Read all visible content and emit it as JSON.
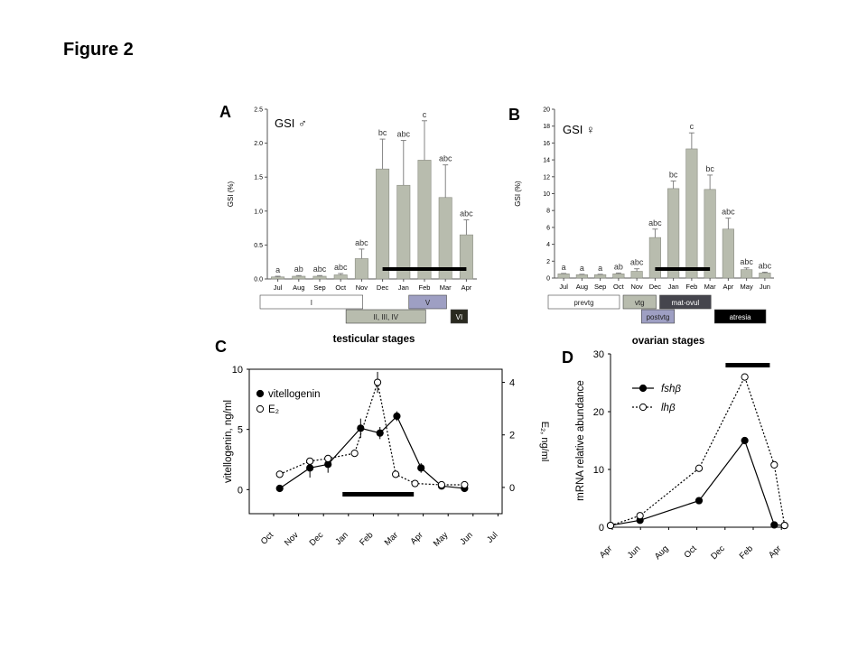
{
  "figure_title": "Figure 2",
  "colors": {
    "bar": "#b8bcae",
    "stage_light": "#ffffff",
    "stage_mid": "#b8bcae",
    "stage_blue": "#9e9fc3",
    "stage_dark": "#2a2a20",
    "stage_darkgray": "#45454d",
    "stage_black": "#000000"
  },
  "chart_data": [
    {
      "panel": "A",
      "type": "bar",
      "label": "GSI ♂",
      "ylabel": "GSI (%)",
      "ylim": [
        0,
        2.5
      ],
      "yticks": [
        "0.0",
        "0.5",
        "1.0",
        "1.5",
        "2.0",
        "2.5"
      ],
      "categories": [
        "Jul",
        "Aug",
        "Sep",
        "Oct",
        "Nov",
        "Dec",
        "Jan",
        "Feb",
        "Mar",
        "Apr"
      ],
      "values": [
        0.03,
        0.04,
        0.04,
        0.06,
        0.3,
        1.62,
        1.38,
        1.75,
        1.2,
        0.65
      ],
      "errors": [
        0.01,
        0.01,
        0.01,
        0.02,
        0.14,
        0.44,
        0.66,
        0.58,
        0.48,
        0.22
      ],
      "letters": [
        "a",
        "ab",
        "abc",
        "abc",
        "abc",
        "bc",
        "abc",
        "c",
        "abc",
        "abc"
      ],
      "bar_span": [
        "Dec",
        "Apr"
      ],
      "stages": [
        {
          "label": "I",
          "from": "Jul",
          "to": "Nov",
          "row": 0,
          "fill": "stage_light"
        },
        {
          "label": "V",
          "from": "Feb",
          "to": "Mar",
          "row": 0,
          "fill": "stage_blue"
        },
        {
          "label": "II, III, IV",
          "from": "Nov",
          "to": "Feb",
          "row": 1,
          "fill": "stage_mid"
        },
        {
          "label": "VI",
          "from": "Apr",
          "to": "Apr",
          "row": 1,
          "fill": "stage_dark"
        }
      ],
      "stage_title": "testicular stages"
    },
    {
      "panel": "B",
      "type": "bar",
      "label": "GSI ♀",
      "ylabel": "GSI (%)",
      "ylim": [
        0,
        20
      ],
      "yticks": [
        "0",
        "2",
        "4",
        "6",
        "8",
        "10",
        "12",
        "14",
        "16",
        "18",
        "20"
      ],
      "categories": [
        "Jul",
        "Aug",
        "Sep",
        "Oct",
        "Nov",
        "Dec",
        "Jan",
        "Feb",
        "Mar",
        "Apr",
        "May",
        "Jun"
      ],
      "values": [
        0.5,
        0.4,
        0.4,
        0.5,
        0.8,
        4.8,
        10.6,
        15.3,
        10.5,
        5.8,
        1.0,
        0.6
      ],
      "errors": [
        0.05,
        0.05,
        0.05,
        0.1,
        0.3,
        1.0,
        0.9,
        1.9,
        1.7,
        1.3,
        0.2,
        0.1
      ],
      "letters": [
        "a",
        "a",
        "a",
        "ab",
        "abc",
        "abc",
        "bc",
        "c",
        "bc",
        "abc",
        "abc",
        "abc"
      ],
      "bar_span": [
        "Dec",
        "Mar"
      ],
      "stages": [
        {
          "label": "prevtg",
          "from": "Jul",
          "to": "Oct",
          "row": 0,
          "fill": "stage_light"
        },
        {
          "label": "vtg",
          "from": "Nov",
          "to": "Dec",
          "row": 0,
          "fill": "stage_mid"
        },
        {
          "label": "mat-ovul",
          "from": "Jan",
          "to": "Mar",
          "row": 0,
          "fill": "stage_darkgray"
        },
        {
          "label": "postvtg",
          "from": "Dec",
          "to": "Jan",
          "row": 1,
          "fill": "stage_blue"
        },
        {
          "label": "atresia",
          "from": "Apr",
          "to": "Jun",
          "row": 1,
          "fill": "stage_black"
        }
      ],
      "stage_title": "ovarian stages"
    },
    {
      "panel": "C",
      "type": "line",
      "ylabel": "vitellogenin, ng/ml",
      "y2label": "E₂, ng/ml",
      "ylim": [
        -2,
        10
      ],
      "y2lim": [
        -1.0,
        4.5
      ],
      "yticks": [
        "0",
        "5",
        "10"
      ],
      "y2ticks": [
        "0",
        "2",
        "4"
      ],
      "xticks": [
        "Oct",
        "Nov",
        "Dec",
        "Jan",
        "Feb",
        "Mar",
        "Apr",
        "May",
        "Jun",
        "Jul"
      ],
      "series": [
        {
          "name": "vitellogenin",
          "axis": "left",
          "marker": "filled",
          "style": "solid",
          "x": [
            0.25,
            1.5,
            2.25,
            3.6,
            4.4,
            5.1,
            6.1,
            6.95,
            7.9
          ],
          "y": [
            0.1,
            1.8,
            2.1,
            5.1,
            4.7,
            6.1,
            1.8,
            0.3,
            0.1
          ],
          "err": [
            0,
            0.8,
            0.7,
            0.8,
            0.5,
            0.4,
            0.4,
            0.2,
            0.1
          ]
        },
        {
          "name": "E₂",
          "axis": "right",
          "marker": "open",
          "style": "dotted",
          "x": [
            0.25,
            1.5,
            2.25,
            3.35,
            4.3,
            5.05,
            5.85,
            6.95,
            7.9
          ],
          "y": [
            0.5,
            1.0,
            1.1,
            1.3,
            4.0,
            0.5,
            0.15,
            0.1,
            0.1
          ],
          "err": [
            0,
            0,
            0,
            0,
            0.4,
            0,
            0,
            0,
            0
          ]
        }
      ],
      "bar_span": [
        2.85,
        5.8
      ]
    },
    {
      "panel": "D",
      "type": "line",
      "ylabel": "mRNA relative abundance",
      "ylim": [
        0,
        30
      ],
      "yticks": [
        "0",
        "10",
        "20",
        "30"
      ],
      "xticks": [
        "Apr",
        "Jun",
        "Aug",
        "Oct",
        "Dec",
        "Feb",
        "Apr"
      ],
      "series": [
        {
          "name": "fshβ",
          "marker": "filled",
          "style": "solid",
          "x": [
            0,
            1.0,
            3.0,
            4.55,
            5.55,
            5.9
          ],
          "y": [
            0.3,
            1.2,
            4.6,
            15.0,
            0.4,
            0.3
          ]
        },
        {
          "name": "lhβ",
          "marker": "open",
          "style": "dotted",
          "x": [
            0,
            1.0,
            3.0,
            4.55,
            5.55,
            5.9
          ],
          "y": [
            0.3,
            2.0,
            10.2,
            26.0,
            10.8,
            0.3
          ]
        }
      ],
      "bar_span": [
        3.9,
        5.4
      ]
    }
  ]
}
